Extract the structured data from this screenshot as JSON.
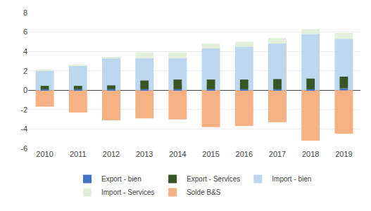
{
  "chart_data": {
    "type": "bar",
    "categories": [
      "2010",
      "2011",
      "2012",
      "2013",
      "2014",
      "2015",
      "2016",
      "2017",
      "2018",
      "2019"
    ],
    "series": [
      {
        "name": "Export - bien",
        "color": "#4472C4",
        "values": [
          0.1,
          0.1,
          0.1,
          0.1,
          0.1,
          0.1,
          0.1,
          0.1,
          0.1,
          0.2
        ]
      },
      {
        "name": "Export - Services",
        "color": "#375623",
        "values": [
          0.35,
          0.35,
          0.4,
          0.9,
          1.0,
          1.0,
          1.0,
          1.05,
          1.1,
          1.2
        ]
      },
      {
        "name": "Import - bien",
        "color": "#BDD7EE",
        "values": [
          2.0,
          2.5,
          3.3,
          3.3,
          3.3,
          4.3,
          4.5,
          4.8,
          5.8,
          5.3
        ]
      },
      {
        "name": "Import - Services",
        "color": "#E2EFDA",
        "values": [
          0.1,
          0.15,
          0.1,
          0.6,
          0.6,
          0.5,
          0.5,
          0.6,
          0.5,
          0.6
        ]
      },
      {
        "name": "Solde B&S",
        "color": "#F4B183",
        "values": [
          -1.7,
          -2.3,
          -3.1,
          -2.9,
          -3.0,
          -3.8,
          -3.7,
          -3.3,
          -5.2,
          -4.5
        ]
      }
    ],
    "stacked": true,
    "ylim": [
      -6,
      8
    ],
    "yticks": [
      -6,
      -4,
      -2,
      0,
      2,
      4,
      6,
      8
    ],
    "grid": true
  }
}
